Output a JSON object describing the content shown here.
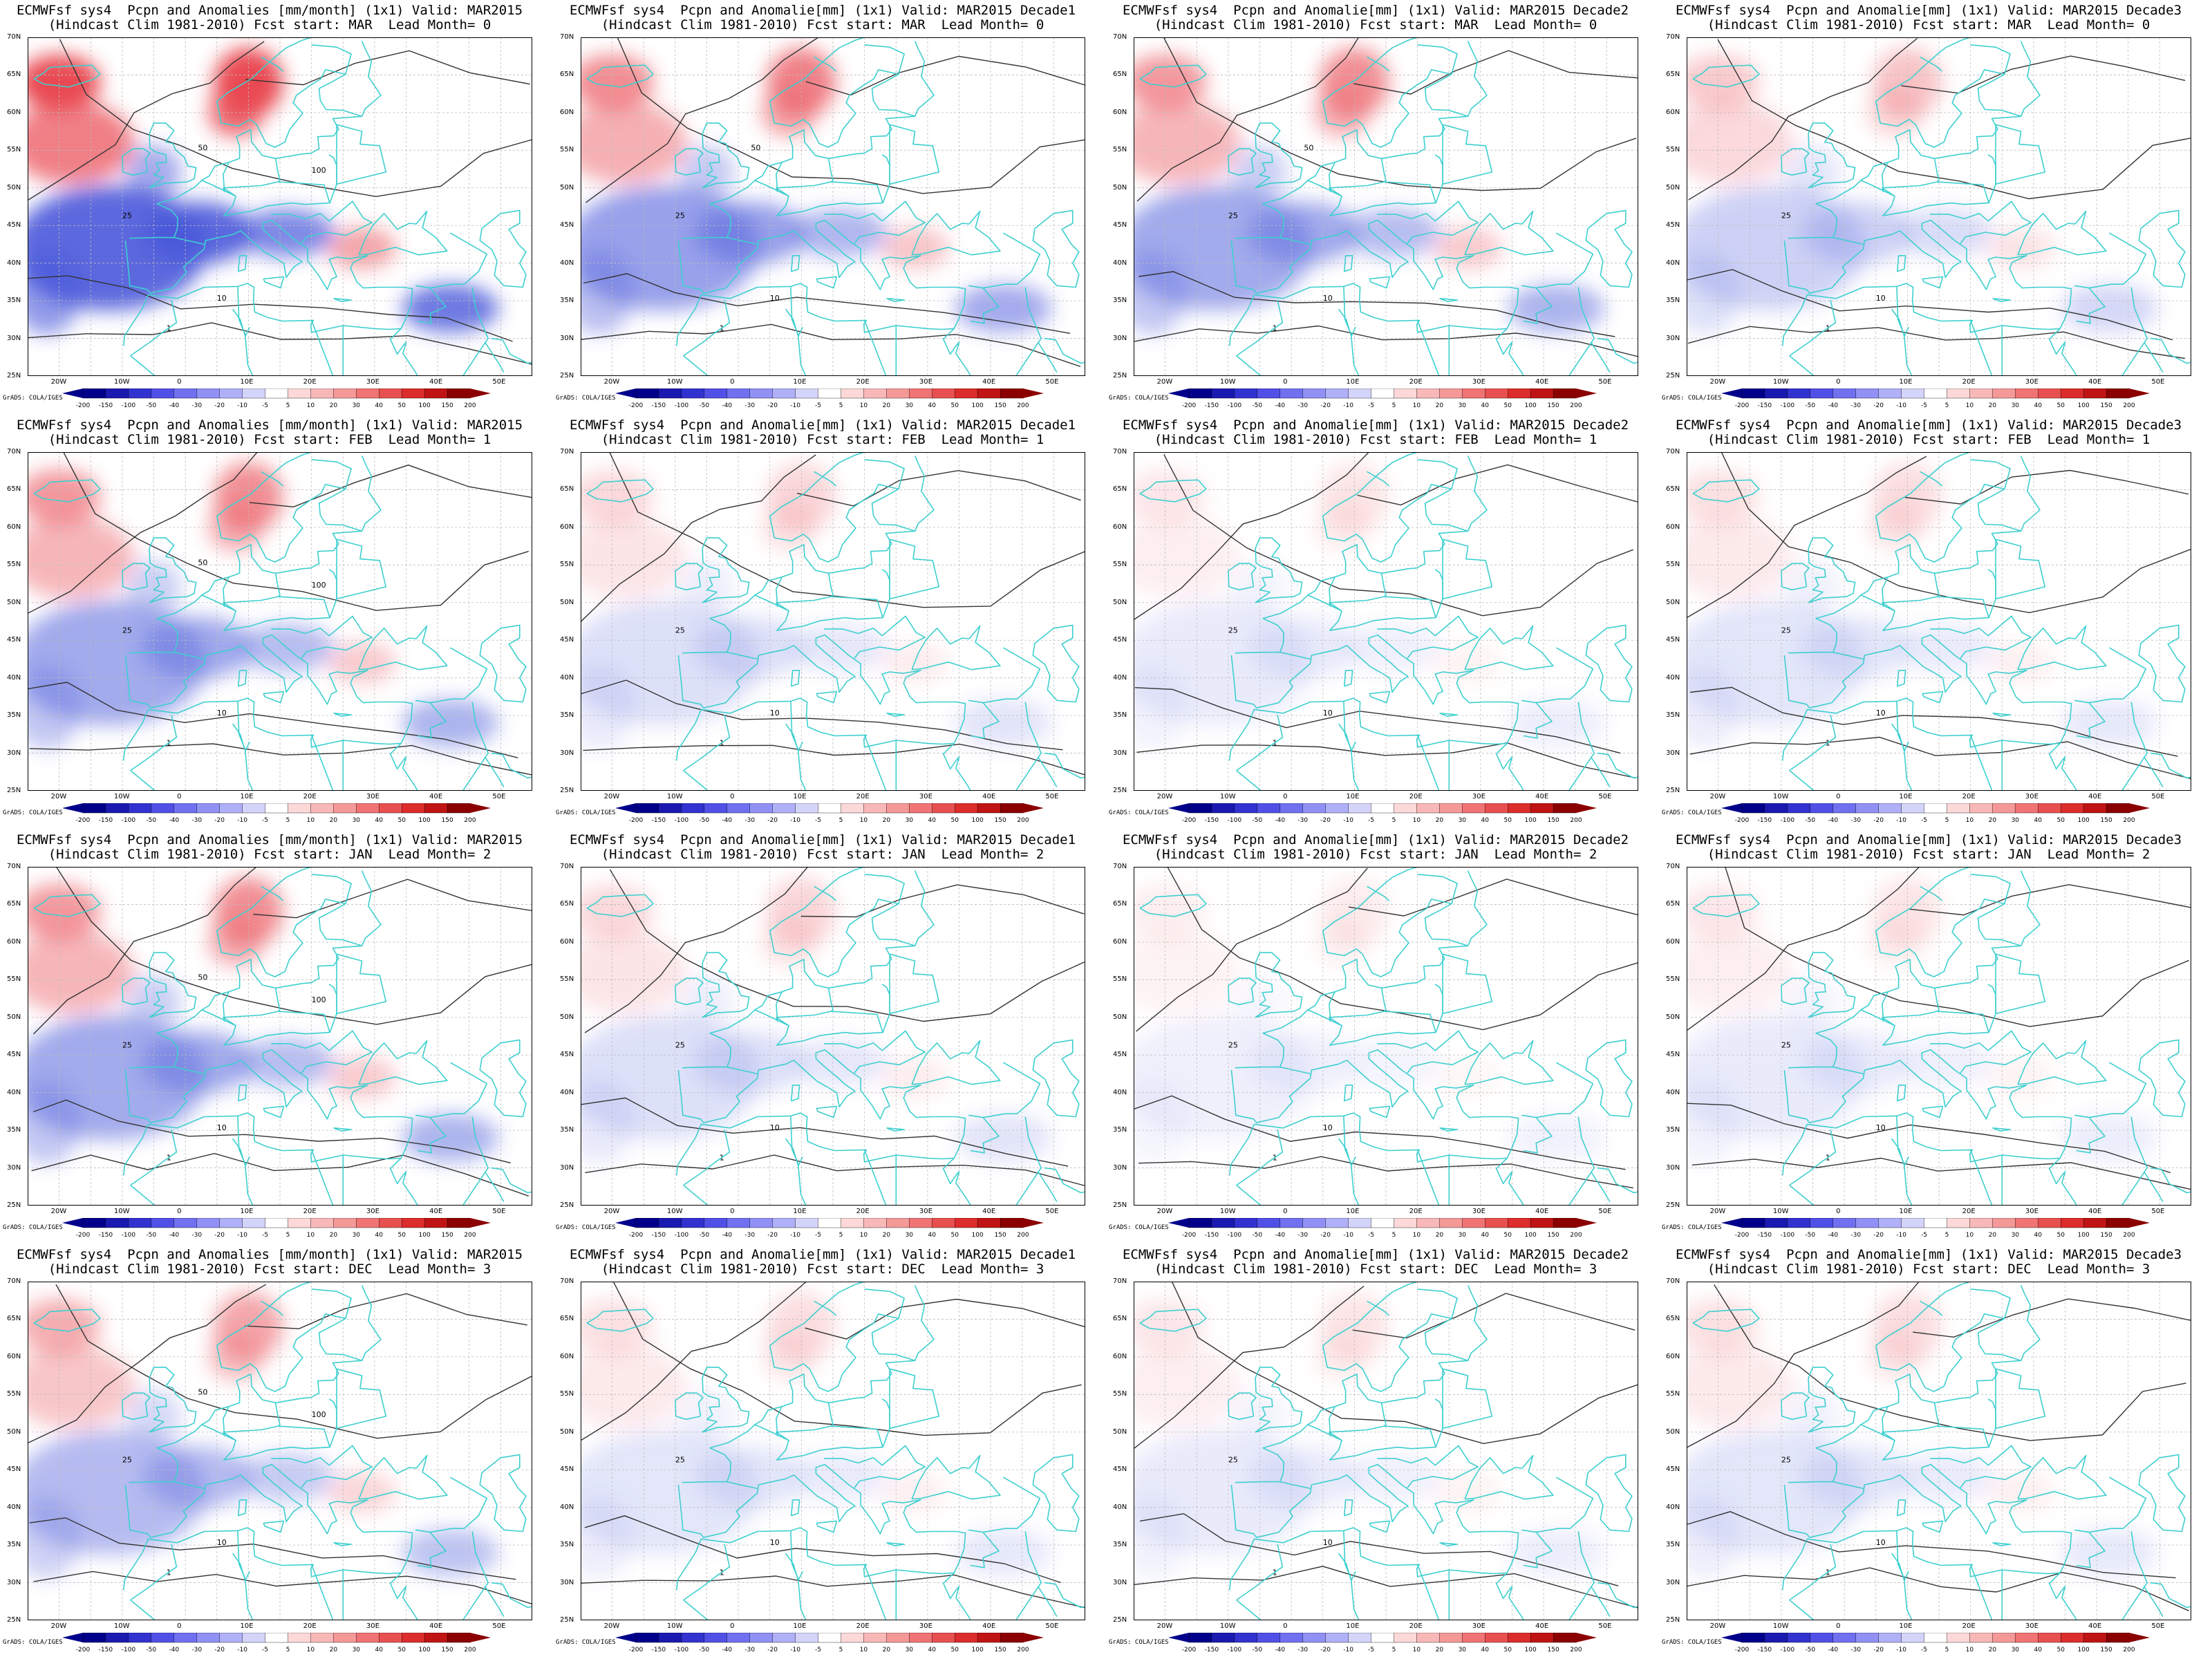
{
  "figure": {
    "credit": "GrADS: COLA/IGES",
    "lat_labels": [
      "70N",
      "65N",
      "60N",
      "55N",
      "50N",
      "45N",
      "40N",
      "35N",
      "30N",
      "25N"
    ],
    "lon_labels": [
      "20W",
      "10W",
      "0",
      "10E",
      "20E",
      "30E",
      "40E",
      "50E"
    ],
    "colorbar": {
      "labels": [
        "-200",
        "-150",
        "-100",
        "-50",
        "-40",
        "-30",
        "-20",
        "-10",
        "-5",
        "5",
        "10",
        "20",
        "30",
        "40",
        "50",
        "100",
        "150",
        "200"
      ],
      "colors": [
        "#00008b",
        "#1a1ab0",
        "#3232d0",
        "#5050e6",
        "#7070f0",
        "#9090f5",
        "#b0b0f8",
        "#d4d4fb",
        "#ffffff",
        "#fcd8d8",
        "#f8b8b8",
        "#f49898",
        "#f07474",
        "#e85050",
        "#dc2c2c",
        "#c01414",
        "#8b0000"
      ]
    },
    "colors": {
      "coast": "#3ecfcf",
      "contour": "#333333",
      "wet": "#e8404a",
      "dry": "#4050d8"
    }
  },
  "panels": [
    {
      "line1": "ECMWFsf sys4  Pcpn and Anomalies [mm/month] (1x1) Valid: MAR2015",
      "line2": "(Hindcast Clim 1981-2010) Fcst start: MAR  Lead Month= 0",
      "intensity": 1.0,
      "contours": [
        "1",
        "10",
        "25",
        "50",
        "100"
      ]
    },
    {
      "line1": "ECMWFsf sys4  Pcpn and Anomalie[mm] (1x1) Valid: MAR2015 Decade1",
      "line2": "(Hindcast Clim 1981-2010) Fcst start: MAR  Lead Month= 0",
      "intensity": 0.75,
      "contours": [
        "1",
        "10",
        "25",
        "50"
      ]
    },
    {
      "line1": "ECMWFsf sys4  Pcpn and Anomalie[mm] (1x1) Valid: MAR2015 Decade2",
      "line2": "(Hindcast Clim 1981-2010) Fcst start: MAR  Lead Month= 0",
      "intensity": 0.7,
      "contours": [
        "1",
        "10",
        "25",
        "50"
      ]
    },
    {
      "line1": "ECMWFsf sys4  Pcpn and Anomalie[mm] (1x1) Valid: MAR2015 Decade3",
      "line2": "(Hindcast Clim 1981-2010) Fcst start: MAR  Lead Month= 0",
      "intensity": 0.45,
      "contours": [
        "1",
        "10",
        "25"
      ]
    },
    {
      "line1": "ECMWFsf sys4  Pcpn and Anomalies [mm/month] (1x1) Valid: MAR2015",
      "line2": "(Hindcast Clim 1981-2010) Fcst start: FEB  Lead Month= 1",
      "intensity": 0.7,
      "contours": [
        "1",
        "10",
        "25",
        "50",
        "100"
      ]
    },
    {
      "line1": "ECMWFsf sys4  Pcpn and Anomalie[mm] (1x1) Valid: MAR2015 Decade1",
      "line2": "(Hindcast Clim 1981-2010) Fcst start: FEB  Lead Month= 1",
      "intensity": 0.35,
      "contours": [
        "1",
        "10",
        "25"
      ]
    },
    {
      "line1": "ECMWFsf sys4  Pcpn and Anomalie[mm] (1x1) Valid: MAR2015 Decade2",
      "line2": "(Hindcast Clim 1981-2010) Fcst start: FEB  Lead Month= 1",
      "intensity": 0.25,
      "contours": [
        "1",
        "10",
        "25"
      ]
    },
    {
      "line1": "ECMWFsf sys4  Pcpn and Anomalie[mm] (1x1) Valid: MAR2015 Decade3",
      "line2": "(Hindcast Clim 1981-2010) Fcst start: FEB  Lead Month= 1",
      "intensity": 0.3,
      "contours": [
        "1",
        "10",
        "25"
      ]
    },
    {
      "line1": "ECMWFsf sys4  Pcpn and Anomalies [mm/month] (1x1) Valid: MAR2015",
      "line2": "(Hindcast Clim 1981-2010) Fcst start: JAN  Lead Month= 2",
      "intensity": 0.7,
      "contours": [
        "1",
        "10",
        "25",
        "50",
        "100"
      ]
    },
    {
      "line1": "ECMWFsf sys4  Pcpn and Anomalie[mm] (1x1) Valid: MAR2015 Decade1",
      "line2": "(Hindcast Clim 1981-2010) Fcst start: JAN  Lead Month= 2",
      "intensity": 0.35,
      "contours": [
        "1",
        "10",
        "25"
      ]
    },
    {
      "line1": "ECMWFsf sys4  Pcpn and Anomalie[mm] (1x1) Valid: MAR2015 Decade2",
      "line2": "(Hindcast Clim 1981-2010) Fcst start: JAN  Lead Month= 2",
      "intensity": 0.2,
      "contours": [
        "1",
        "10",
        "25"
      ]
    },
    {
      "line1": "ECMWFsf sys4  Pcpn and Anomalie[mm] (1x1) Valid: MAR2015 Decade3",
      "line2": "(Hindcast Clim 1981-2010) Fcst start: JAN  Lead Month= 2",
      "intensity": 0.25,
      "contours": [
        "1",
        "10",
        "25"
      ]
    },
    {
      "line1": "ECMWFsf sys4  Pcpn and Anomalies [mm/month] (1x1) Valid: MAR2015",
      "line2": "(Hindcast Clim 1981-2010) Fcst start: DEC  Lead Month= 3",
      "intensity": 0.6,
      "contours": [
        "1",
        "10",
        "25",
        "50",
        "100"
      ]
    },
    {
      "line1": "ECMWFsf sys4  Pcpn and Anomalie[mm] (1x1) Valid: MAR2015 Decade1",
      "line2": "(Hindcast Clim 1981-2010) Fcst start: DEC  Lead Month= 3",
      "intensity": 0.3,
      "contours": [
        "1",
        "10",
        "25"
      ]
    },
    {
      "line1": "ECMWFsf sys4  Pcpn and Anomalie[mm] (1x1) Valid: MAR2015 Decade2",
      "line2": "(Hindcast Clim 1981-2010) Fcst start: DEC  Lead Month= 3",
      "intensity": 0.25,
      "contours": [
        "1",
        "10",
        "25"
      ]
    },
    {
      "line1": "ECMWFsf sys4  Pcpn and Anomalie[mm] (1x1) Valid: MAR2015 Decade3",
      "line2": "(Hindcast Clim 1981-2010) Fcst start: DEC  Lead Month= 3",
      "intensity": 0.3,
      "contours": [
        "1",
        "10",
        "25"
      ]
    }
  ]
}
